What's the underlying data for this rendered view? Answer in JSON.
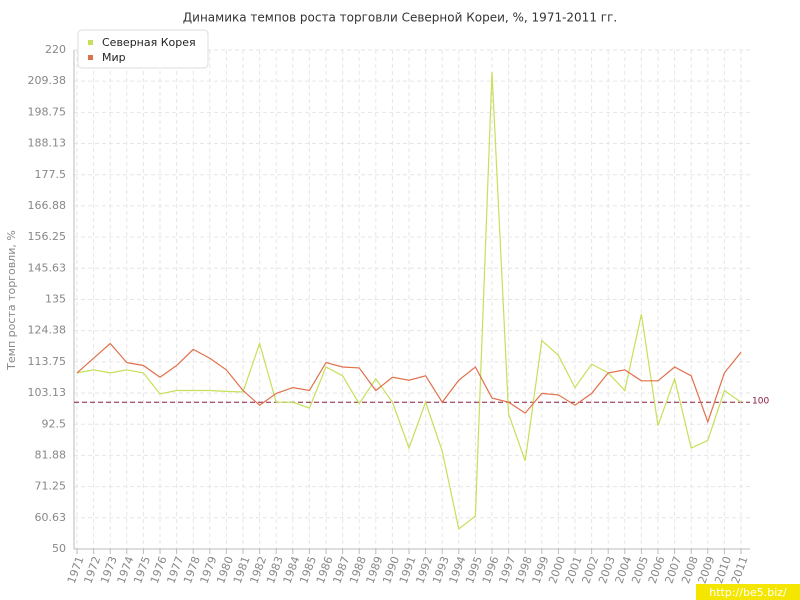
{
  "chart_data": {
    "type": "line",
    "title": "Динамика темпов роста торговли Северной Кореи, %, 1971-2011 гг.",
    "y_label": "Темп роста торговли, %",
    "categories": [
      "1971",
      "1972",
      "1973",
      "1974",
      "1975",
      "1976",
      "1977",
      "1978",
      "1979",
      "1980",
      "1981",
      "1982",
      "1983",
      "1984",
      "1985",
      "1986",
      "1987",
      "1988",
      "1989",
      "1990",
      "1991",
      "1992",
      "1993",
      "1994",
      "1995",
      "1996",
      "1997",
      "1998",
      "1999",
      "2000",
      "2001",
      "2002",
      "2003",
      "2004",
      "2005",
      "2006",
      "2007",
      "2008",
      "2009",
      "2010",
      "2011"
    ],
    "series": [
      {
        "name": "Северная Корея",
        "color": "#c5e05a",
        "values": [
          110,
          111,
          110,
          111,
          110,
          102.8,
          104,
          104,
          104,
          103.7,
          103.5,
          120,
          100,
          100,
          98,
          112,
          109,
          99.5,
          108,
          100,
          84.4,
          100,
          83.4,
          56.8,
          61.2,
          212.5,
          96,
          80,
          121,
          116,
          105,
          113,
          110,
          104,
          130,
          92,
          108,
          84.4,
          87,
          104,
          100
        ]
      },
      {
        "name": "Мир",
        "color": "#e0704a",
        "values": [
          110,
          115,
          120,
          113.5,
          112.5,
          108.5,
          112.5,
          118,
          115,
          111,
          104,
          99,
          103,
          105,
          104,
          113.5,
          112,
          111.7,
          104,
          108.5,
          107.5,
          109,
          100,
          107.5,
          112,
          101.4,
          100,
          96.3,
          103,
          102.5,
          99,
          103,
          110,
          111,
          107.3,
          107.3,
          112,
          109,
          93.3,
          110,
          117
        ]
      }
    ],
    "ylim": [
      50,
      220
    ],
    "yticks": [
      50,
      60.63,
      71.25,
      81.88,
      92.5,
      103.13,
      113.75,
      124.38,
      135,
      145.63,
      156.25,
      166.88,
      177.5,
      188.13,
      198.75,
      209.38,
      220
    ],
    "reference_value": 100,
    "reference_color": "#8b1a3a",
    "grid": true,
    "legend": "top-left",
    "watermark": "http://be5.biz/"
  }
}
